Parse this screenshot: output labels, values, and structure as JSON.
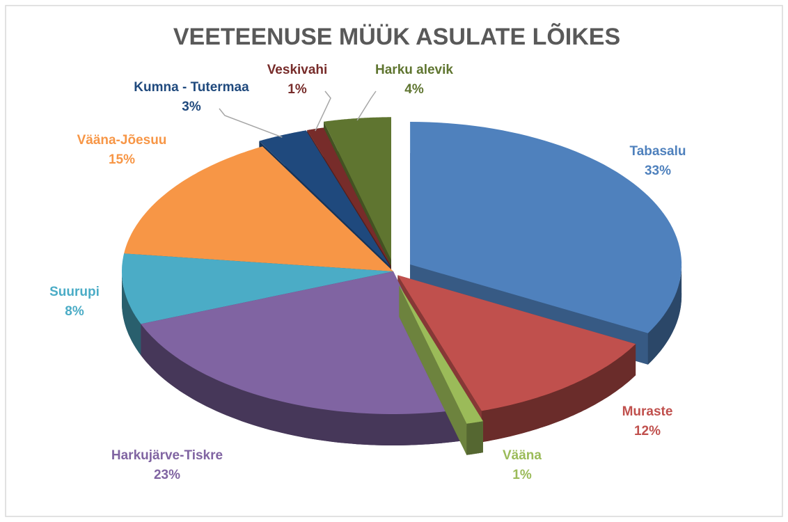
{
  "chart_data": {
    "type": "pie",
    "title": "VEETEENUSE MÜÜK ASULATE LÕIKES",
    "categories": [
      "Tabasalu",
      "Muraste",
      "Vääna",
      "Harkujärve-Tiskre",
      "Suurupi",
      "Vääna-Jõesuu",
      "Kumna - Tutermaa",
      "Veskivahi",
      "Harku alevik"
    ],
    "values": [
      33,
      12,
      1,
      23,
      8,
      15,
      3,
      1,
      4
    ],
    "value_labels": [
      "33%",
      "12%",
      "1%",
      "23%",
      "8%",
      "15%",
      "3%",
      "1%",
      "4%"
    ],
    "colors": [
      "#4f81bd",
      "#c0504d",
      "#9bbb59",
      "#8064a2",
      "#4bacc6",
      "#f79646",
      "#1f497d",
      "#772c2a",
      "#5f7530"
    ]
  }
}
